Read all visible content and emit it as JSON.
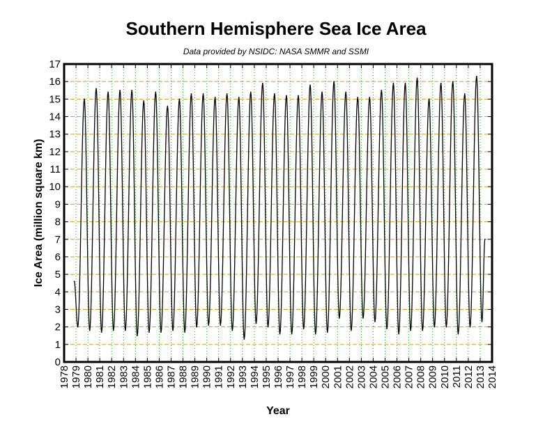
{
  "chart_data": {
    "type": "line",
    "title": "Southern Hemisphere Sea Ice Area",
    "subtitle": "Data provided by NSIDC: NASA SMMR and SSMI",
    "xlabel": "Year",
    "ylabel": "Ice Area (million square km)",
    "xlim": [
      1978,
      2014
    ],
    "ylim": [
      0,
      17
    ],
    "x_ticks": [
      "1978",
      "1979",
      "1980",
      "1981",
      "1982",
      "1983",
      "1984",
      "1985",
      "1986",
      "1987",
      "1988",
      "1989",
      "1990",
      "1991",
      "1992",
      "1993",
      "1994",
      "1995",
      "1996",
      "1997",
      "1998",
      "1999",
      "2000",
      "2001",
      "2002",
      "2003",
      "2004",
      "2005",
      "2006",
      "2007",
      "2008",
      "2009",
      "2010",
      "2011",
      "2012",
      "2013",
      "2014"
    ],
    "y_ticks": [
      "0",
      "1",
      "2",
      "3",
      "4",
      "5",
      "6",
      "7",
      "8",
      "9",
      "10",
      "11",
      "12",
      "13",
      "14",
      "15",
      "16",
      "17"
    ],
    "grid": true,
    "grid_color": "#d4a017",
    "grid_x_color": "#2e9e2e",
    "line_color": "#000000",
    "series": [
      {
        "x": [
          1978.85,
          1979.15,
          1979.7,
          1980.15,
          1980.7,
          1981.15,
          1981.7,
          1982.15,
          1982.7,
          1983.15,
          1983.7,
          1984.15,
          1984.7,
          1985.15,
          1985.7,
          1986.15,
          1986.7,
          1987.15,
          1987.7,
          1988.15,
          1988.7,
          1989.15,
          1989.7,
          1990.15,
          1990.7,
          1991.15,
          1991.7,
          1992.15,
          1992.7,
          1993.15,
          1993.7,
          1994.15,
          1994.7,
          1995.15,
          1995.7,
          1996.15,
          1996.7,
          1997.15,
          1997.7,
          1998.15,
          1998.7,
          1999.15,
          1999.7,
          2000.15,
          2000.7,
          2001.15,
          2001.7,
          2002.15,
          2002.7,
          2003.15,
          2003.7,
          2004.15,
          2004.7,
          2005.15,
          2005.7,
          2006.15,
          2006.7,
          2007.15,
          2007.7,
          2008.15,
          2008.7,
          2009.15,
          2009.7,
          2010.15,
          2010.7,
          2011.15,
          2011.7,
          2012.15,
          2012.7,
          2013.15,
          2013.4
        ],
        "y": [
          4.6,
          2.0,
          15.0,
          1.8,
          15.6,
          1.7,
          15.4,
          1.8,
          15.5,
          1.8,
          15.5,
          1.5,
          14.9,
          1.7,
          15.4,
          1.7,
          14.6,
          1.8,
          15.0,
          1.7,
          15.3,
          2.0,
          15.3,
          2.1,
          15.1,
          2.1,
          15.3,
          1.8,
          15.1,
          1.3,
          15.4,
          2.2,
          15.9,
          2.0,
          15.3,
          1.6,
          15.2,
          1.6,
          15.2,
          1.9,
          15.8,
          1.6,
          15.4,
          1.7,
          16.0,
          2.5,
          15.4,
          1.8,
          15.1,
          2.5,
          15.1,
          2.3,
          15.5,
          1.9,
          15.9,
          1.6,
          15.9,
          1.8,
          16.2,
          1.8,
          15.0,
          2.0,
          15.9,
          2.0,
          16.0,
          1.6,
          15.3,
          2.0,
          16.3,
          2.3,
          7.0
        ]
      }
    ]
  }
}
